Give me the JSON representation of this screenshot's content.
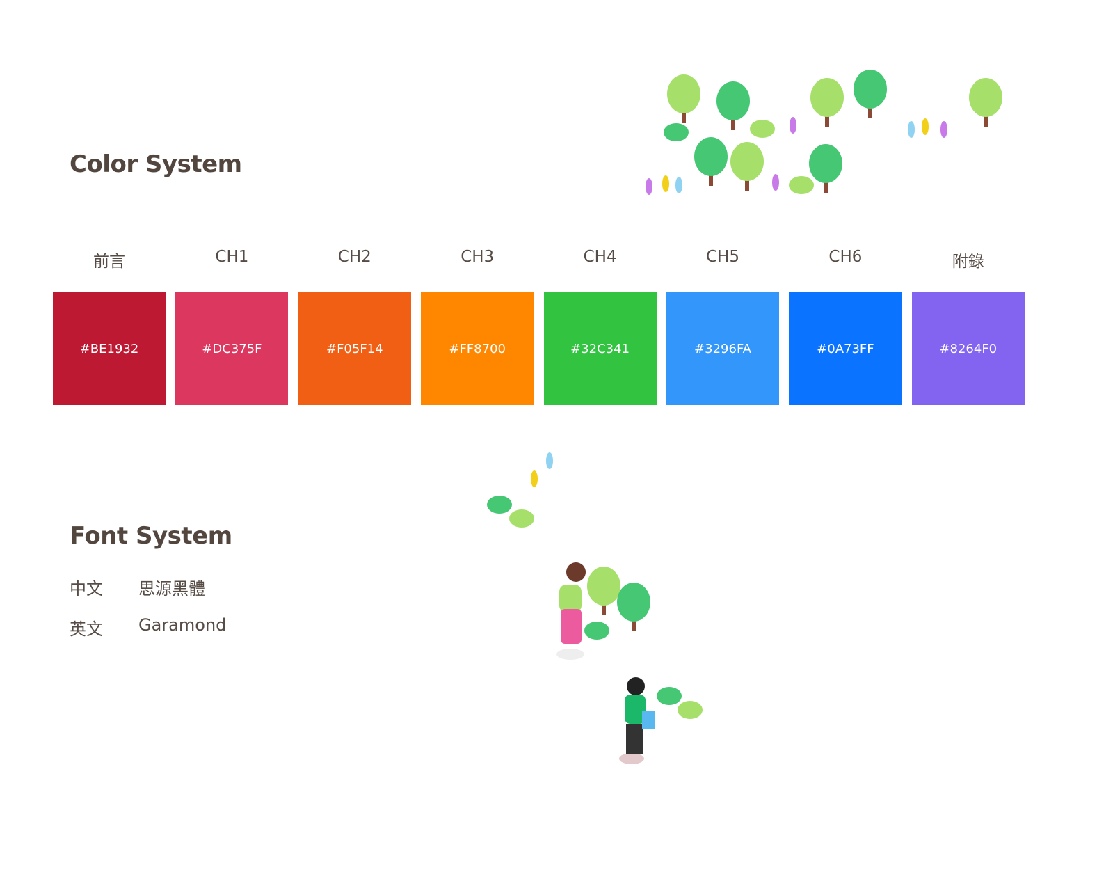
{
  "color_section": {
    "title": "Color System",
    "swatches": [
      {
        "label": "前言",
        "hex": "#BE1932",
        "color": "#BE1932"
      },
      {
        "label": "CH1",
        "hex": "#DC375F",
        "color": "#DC375F"
      },
      {
        "label": "CH2",
        "hex": "#F05F14",
        "color": "#F05F14"
      },
      {
        "label": "CH3",
        "hex": "#FF8700",
        "color": "#FF8700"
      },
      {
        "label": "CH4",
        "hex": "#32C341",
        "color": "#32C341"
      },
      {
        "label": "CH5",
        "hex": "#3296FA",
        "color": "#3296FA"
      },
      {
        "label": "CH6",
        "hex": "#0A73FF",
        "color": "#0A73FF"
      },
      {
        "label": "附錄",
        "hex": "#8264F0",
        "color": "#8264F0"
      }
    ]
  },
  "font_section": {
    "title": "Font System",
    "rows": [
      {
        "key": "中文",
        "value": "思源黑體"
      },
      {
        "key": "英文",
        "value": "Garamond"
      }
    ]
  }
}
